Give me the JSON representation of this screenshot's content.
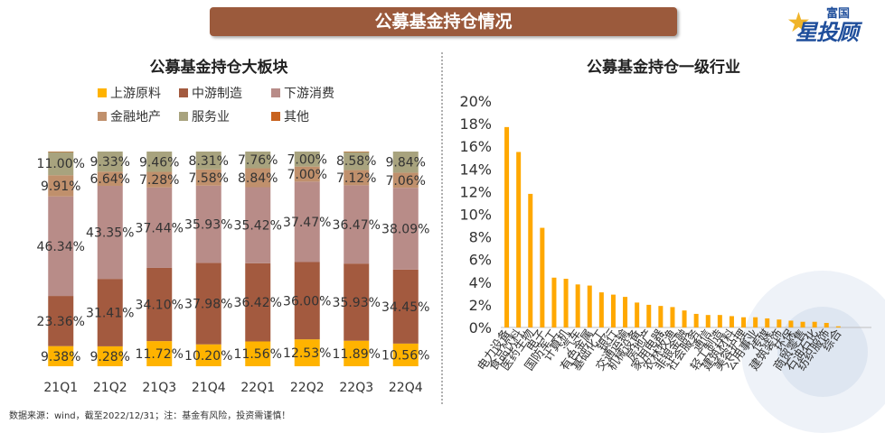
{
  "banner": {
    "title": "公募基金持仓情况"
  },
  "logo": {
    "top_text": "富国",
    "main_text": "星投顾"
  },
  "source_note": "数据来源：wind，截至2022/12/31；注：基金有风险，投资需谨慎！",
  "colors": {
    "banner": "#9b5a3c",
    "upstream": "#ffb300",
    "midstream": "#a35a3f",
    "downstream": "#b88c88",
    "finance": "#c0906c",
    "service": "#a8a37e",
    "other": "#c8621e",
    "industry_bar": "#ffa800"
  },
  "chart_data": [
    {
      "type": "bar",
      "stacked": true,
      "percent": true,
      "title": "公募基金持仓大板块",
      "categories": [
        "21Q1",
        "21Q2",
        "21Q3",
        "21Q4",
        "22Q1",
        "22Q2",
        "22Q3",
        "22Q4"
      ],
      "legend": [
        "上游原料",
        "中游制造",
        "下游消费",
        "金融地产",
        "服务业",
        "其他"
      ],
      "series": [
        {
          "name": "上游原料",
          "color_key": "upstream",
          "values": [
            9.38,
            9.28,
            11.72,
            10.2,
            11.56,
            12.53,
            11.89,
            10.56
          ],
          "labels": [
            "9.38%",
            "9.28%",
            "11.72%",
            "10.20%",
            "11.56%",
            "12.53%",
            "11.89%",
            "10.56%"
          ]
        },
        {
          "name": "中游制造",
          "color_key": "midstream",
          "values": [
            23.36,
            31.41,
            34.1,
            37.98,
            36.42,
            36.0,
            35.93,
            34.45
          ],
          "labels": [
            "23.36%",
            "31.41%",
            "34.10%",
            "37.98%",
            "36.42%",
            "36.00%",
            "35.93%",
            "34.45%"
          ]
        },
        {
          "name": "下游消费",
          "color_key": "downstream",
          "values": [
            46.34,
            43.35,
            37.44,
            35.93,
            35.42,
            37.47,
            36.47,
            38.09
          ],
          "labels": [
            "46.34%",
            "43.35%",
            "37.44%",
            "35.93%",
            "35.42%",
            "37.47%",
            "36.47%",
            "38.09%"
          ]
        },
        {
          "name": "金融地产",
          "color_key": "finance",
          "values": [
            9.91,
            6.64,
            7.28,
            7.58,
            8.84,
            7.0,
            7.12,
            7.06
          ],
          "labels": [
            "9.91%",
            "6.64%",
            "7.28%",
            "7.58%",
            "8.84%",
            "7.00%",
            "7.12%",
            "7.06%"
          ]
        },
        {
          "name": "服务业",
          "color_key": "service",
          "values": [
            11.0,
            9.33,
            9.46,
            8.31,
            7.76,
            7.0,
            8.58,
            9.84
          ],
          "labels": [
            "11.00%",
            "9.33%",
            "9.46%",
            "8.31%",
            "7.76%",
            "7.00%",
            "8.58%",
            "9.84%"
          ]
        },
        {
          "name": "其他",
          "color_key": "other",
          "values": [
            0.01,
            0.0,
            0.0,
            0.0,
            0.0,
            0.0,
            0.01,
            0.0
          ],
          "labels": [
            "",
            "",
            "",
            "",
            "",
            "",
            "",
            ""
          ]
        }
      ],
      "ylim": [
        0,
        100
      ]
    },
    {
      "type": "bar",
      "title": "公募基金持仓一级行业",
      "categories": [
        "电力设备",
        "食品饮料",
        "医药生物",
        "电子",
        "国防军工",
        "计算机",
        "汽车",
        "有色金属",
        "基础化工",
        "银行",
        "交通运输",
        "机械设备",
        "房地产",
        "家用电器",
        "农林牧渔",
        "非银金融",
        "社会服务",
        "通信",
        "轻工制造",
        "建筑材料",
        "美容护理",
        "公用事业",
        "传媒",
        "建筑装饰",
        "环保",
        "商贸零售",
        "石油石化",
        "纺织服饰",
        "综合"
      ],
      "values": [
        17.7,
        15.5,
        11.8,
        8.8,
        4.4,
        4.3,
        3.8,
        3.7,
        3.1,
        2.9,
        2.7,
        2.2,
        2.0,
        1.9,
        1.8,
        1.5,
        1.2,
        1.1,
        1.1,
        1.0,
        0.9,
        0.9,
        0.8,
        0.7,
        0.6,
        0.5,
        0.5,
        0.4,
        0.1
      ],
      "ylim": [
        0,
        20
      ],
      "yticks": [
        "0%",
        "2%",
        "4%",
        "6%",
        "8%",
        "10%",
        "12%",
        "14%",
        "16%",
        "18%",
        "20%"
      ]
    }
  ]
}
